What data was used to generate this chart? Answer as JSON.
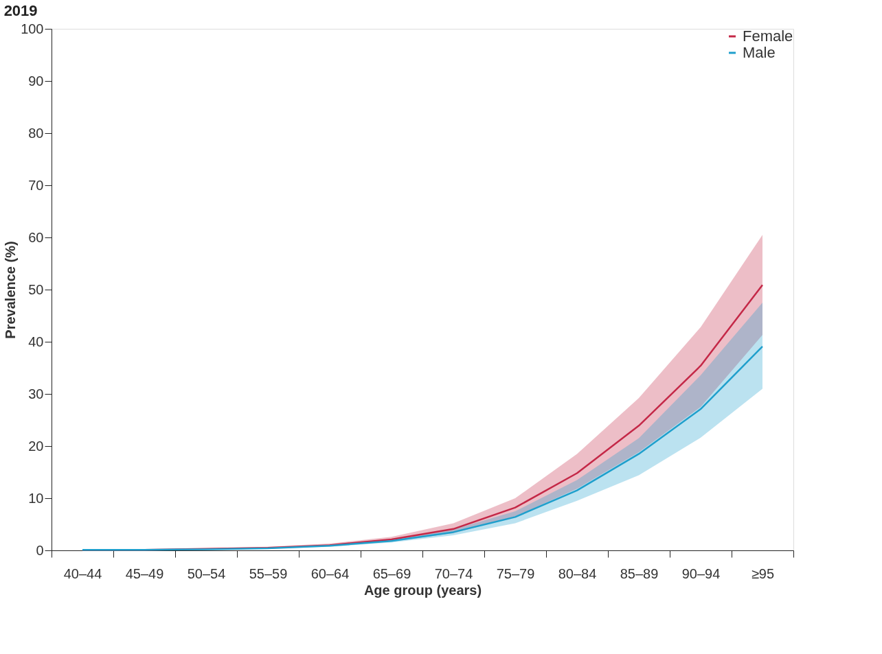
{
  "chart_data": {
    "type": "line",
    "title": "2019",
    "xlabel": "Age group (years)",
    "ylabel": "Prevalence (%)",
    "categories": [
      "40–44",
      "45–49",
      "50–54",
      "55–59",
      "60–64",
      "65–69",
      "70–74",
      "75–79",
      "80–84",
      "85–89",
      "90–94",
      "≥95"
    ],
    "series": [
      {
        "name": "Female",
        "color": "#c42847",
        "values": [
          0.1,
          0.1,
          0.3,
          0.5,
          1.0,
          2.1,
          4.1,
          8.2,
          14.8,
          23.9,
          35.4,
          50.9
        ],
        "lower": [
          0.0,
          0.1,
          0.2,
          0.4,
          0.8,
          1.7,
          3.3,
          6.5,
          11.8,
          18.8,
          27.5,
          41.3
        ],
        "upper": [
          0.2,
          0.2,
          0.4,
          0.7,
          1.3,
          2.6,
          5.2,
          10.0,
          18.5,
          29.2,
          42.8,
          60.5
        ]
      },
      {
        "name": "Male",
        "color": "#1f9fcc",
        "values": [
          0.1,
          0.1,
          0.2,
          0.4,
          0.9,
          1.8,
          3.5,
          6.4,
          11.5,
          18.5,
          27.1,
          39.1
        ],
        "lower": [
          0.0,
          0.1,
          0.2,
          0.3,
          0.7,
          1.5,
          2.9,
          5.2,
          9.5,
          14.4,
          21.6,
          31.0
        ],
        "upper": [
          0.2,
          0.2,
          0.3,
          0.6,
          1.1,
          2.2,
          4.0,
          7.5,
          13.5,
          21.5,
          33.6,
          47.5
        ]
      }
    ],
    "ylim": [
      0,
      100
    ],
    "yticks": [
      0,
      10,
      20,
      30,
      40,
      50,
      60,
      70,
      80,
      90,
      100
    ],
    "grid": false,
    "legend": "top right",
    "marker": "none",
    "line_style": "solid"
  }
}
